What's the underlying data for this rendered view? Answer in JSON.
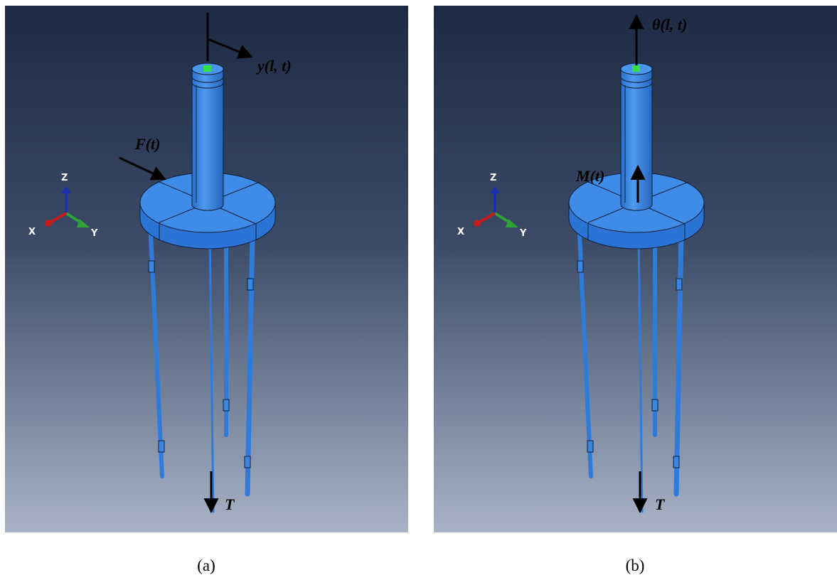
{
  "panels": [
    {
      "annotations": [
        "y(l, t)",
        "F(t)",
        "T"
      ],
      "axes": {
        "z": "Z",
        "x": "X",
        "y": "Y"
      },
      "caption": "(a)"
    },
    {
      "annotations": [
        "θ(l, t)",
        "M(t)",
        "T"
      ],
      "axes": {
        "z": "Z",
        "x": "X",
        "y": "Y"
      },
      "caption": "(b)"
    }
  ]
}
